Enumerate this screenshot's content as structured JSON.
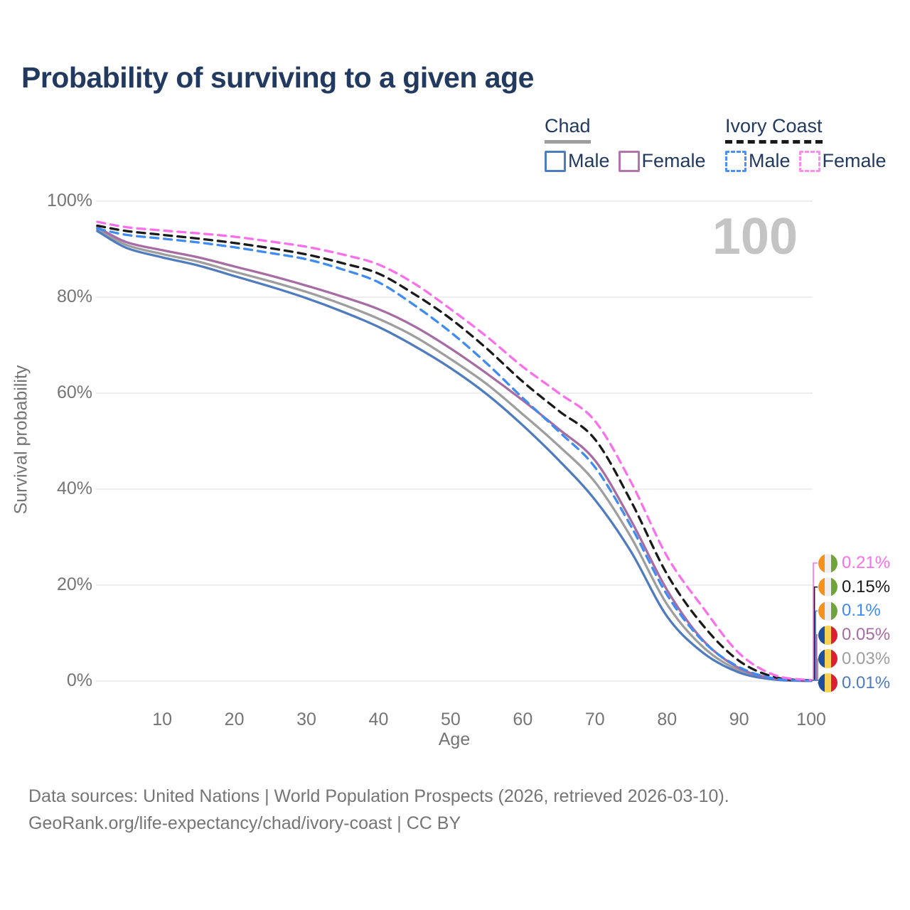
{
  "title": "Probability of surviving to a given age",
  "watermark": "100",
  "legend": {
    "groups": [
      {
        "name": "Chad",
        "line_style": "solid",
        "underline_color": "#9E9E9E",
        "items": [
          {
            "label": "Male",
            "color": "#4F7CBF"
          },
          {
            "label": "Female",
            "color": "#B573AC"
          }
        ]
      },
      {
        "name": "Ivory Coast",
        "line_style": "dashed",
        "underline_color": "#1A1A1A",
        "items": [
          {
            "label": "Male",
            "color": "#4A90F5"
          },
          {
            "label": "Female",
            "color": "#FF8AF0"
          }
        ]
      }
    ]
  },
  "chart_data": {
    "type": "line",
    "title": "Probability of surviving to a given age",
    "xlabel": "Age",
    "ylabel": "Survival probability",
    "xlim": [
      1,
      100
    ],
    "ylim": [
      0,
      100
    ],
    "grid": "horizontal",
    "legend_position": "top-right",
    "x_ticks": [
      10,
      20,
      30,
      40,
      50,
      60,
      70,
      80,
      90,
      100
    ],
    "y_ticks": [
      {
        "label": "0%",
        "value": 0
      },
      {
        "label": "20%",
        "value": 20
      },
      {
        "label": "40%",
        "value": 40
      },
      {
        "label": "60%",
        "value": 60
      },
      {
        "label": "80%",
        "value": 80
      },
      {
        "label": "100%",
        "value": 100
      }
    ],
    "x": [
      1,
      5,
      10,
      15,
      20,
      25,
      30,
      35,
      40,
      45,
      50,
      55,
      60,
      65,
      70,
      75,
      80,
      85,
      90,
      95,
      100
    ],
    "series": [
      {
        "name": "Chad Both sexes",
        "country": "Chad",
        "sex": "both",
        "color": "#9E9E9E",
        "dash": false,
        "values": [
          94.2,
          90.9,
          89.0,
          87.4,
          85.3,
          83.3,
          81.1,
          78.5,
          75.5,
          71.8,
          67.1,
          61.9,
          55.6,
          49.0,
          41.5,
          30.0,
          16.0,
          7.1,
          2.2,
          0.4,
          0.03
        ]
      },
      {
        "name": "Chad Male",
        "country": "Chad",
        "sex": "male",
        "color": "#4F7CBF",
        "dash": false,
        "values": [
          93.8,
          90.3,
          88.3,
          86.6,
          84.4,
          82.2,
          79.8,
          77.0,
          73.8,
          69.8,
          65.2,
          59.8,
          53.3,
          46.0,
          37.8,
          27.0,
          13.5,
          5.9,
          1.8,
          0.3,
          0.01
        ]
      },
      {
        "name": "Chad Female",
        "country": "Chad",
        "sex": "female",
        "color": "#A76CA3",
        "dash": false,
        "values": [
          94.6,
          91.5,
          89.8,
          88.3,
          86.4,
          84.5,
          82.4,
          80.1,
          77.5,
          73.9,
          69.3,
          64.1,
          58.5,
          52.5,
          46.0,
          33.5,
          19.0,
          8.5,
          2.7,
          0.5,
          0.05
        ]
      },
      {
        "name": "Ivory Coast Both sexes",
        "country": "Ivory Coast",
        "sex": "both",
        "color": "#1A1A1A",
        "dash": true,
        "values": [
          94.9,
          93.8,
          93.0,
          92.2,
          91.3,
          90.2,
          88.9,
          87.1,
          84.9,
          80.6,
          75.5,
          69.3,
          62.4,
          56.3,
          50.4,
          37.5,
          22.3,
          11.6,
          4.2,
          0.8,
          0.15
        ]
      },
      {
        "name": "Ivory Coast Male",
        "country": "Ivory Coast",
        "sex": "male",
        "color": "#3E8BF2",
        "dash": true,
        "values": [
          94.3,
          93.0,
          92.2,
          91.4,
          90.4,
          89.2,
          87.9,
          85.8,
          83.1,
          78.3,
          72.7,
          66.2,
          59.0,
          52.0,
          44.6,
          32.3,
          18.0,
          8.3,
          2.9,
          0.5,
          0.1
        ]
      },
      {
        "name": "Ivory Coast Female",
        "country": "Ivory Coast",
        "sex": "female",
        "color": "#FA70EA",
        "dash": true,
        "values": [
          95.7,
          94.6,
          93.9,
          93.3,
          92.6,
          91.6,
          90.5,
          88.9,
          86.8,
          82.8,
          77.5,
          71.8,
          65.5,
          60.0,
          54.2,
          41.5,
          26.0,
          15.3,
          5.8,
          1.2,
          0.21
        ]
      }
    ],
    "end_labels": [
      {
        "value": "0.21%",
        "color": "#FA70EA",
        "flag": "ivory_coast",
        "series": "Ivory Coast Female"
      },
      {
        "value": "0.15%",
        "color": "#1A1A1A",
        "flag": "ivory_coast",
        "series": "Ivory Coast Both sexes"
      },
      {
        "value": "0.1%",
        "color": "#3E8BF2",
        "flag": "ivory_coast",
        "series": "Ivory Coast Male"
      },
      {
        "value": "0.05%",
        "color": "#A76CA3",
        "flag": "chad",
        "series": "Chad Female"
      },
      {
        "value": "0.03%",
        "color": "#9E9E9E",
        "flag": "chad",
        "series": "Chad Both sexes"
      },
      {
        "value": "0.01%",
        "color": "#4F7CBF",
        "flag": "chad",
        "series": "Chad Male"
      }
    ]
  },
  "flags": {
    "ivory_coast": [
      "#F5921E",
      "#EFEFEF",
      "#6FA43A"
    ],
    "chad": [
      "#1D4F9C",
      "#F7D154",
      "#DC1F32"
    ]
  },
  "footer": {
    "line1": "Data sources: United Nations | World Population Prospects (2026, retrieved 2026-03-10).",
    "line2": "GeoRank.org/life-expectancy/chad/ivory-coast | CC BY"
  }
}
